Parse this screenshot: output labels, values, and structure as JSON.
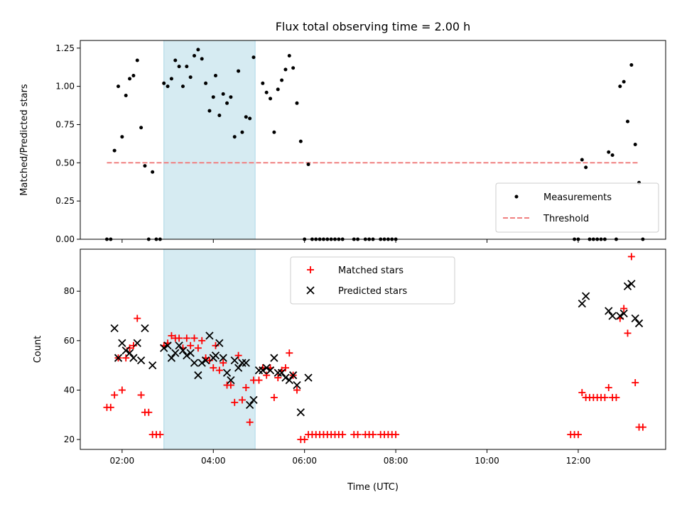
{
  "chart_data": [
    {
      "type": "scatter",
      "title": "Flux total observing time = 2.00 h",
      "xlabel": "",
      "ylabel": "Matched/Predicted stars",
      "xlim": [
        "01:05",
        "13:55"
      ],
      "ylim": [
        0,
        1.3
      ],
      "yticks": [
        "0.00",
        "0.25",
        "0.50",
        "0.75",
        "1.00",
        "1.25"
      ],
      "ytick_values": [
        0,
        0.25,
        0.5,
        0.75,
        1.0,
        1.25
      ],
      "shaded_interval": [
        "02:55",
        "04:55"
      ],
      "legend_position": "lower-right",
      "series": [
        {
          "name": "Measurements",
          "marker": "dot",
          "color": "#000000",
          "points": [
            [
              "01:40",
              0
            ],
            [
              "01:45",
              0
            ],
            [
              "01:50",
              0.58
            ],
            [
              "01:55",
              1.0
            ],
            [
              "02:00",
              0.67
            ],
            [
              "02:05",
              0.94
            ],
            [
              "02:10",
              1.05
            ],
            [
              "02:15",
              1.07
            ],
            [
              "02:20",
              1.17
            ],
            [
              "02:25",
              0.73
            ],
            [
              "02:30",
              0.48
            ],
            [
              "02:35",
              0
            ],
            [
              "02:40",
              0.44
            ],
            [
              "02:45",
              0
            ],
            [
              "02:50",
              0
            ],
            [
              "02:55",
              1.02
            ],
            [
              "03:00",
              1.0
            ],
            [
              "03:05",
              1.05
            ],
            [
              "03:10",
              1.17
            ],
            [
              "03:15",
              1.13
            ],
            [
              "03:20",
              1.0
            ],
            [
              "03:25",
              1.13
            ],
            [
              "03:30",
              1.06
            ],
            [
              "03:35",
              1.2
            ],
            [
              "03:40",
              1.24
            ],
            [
              "03:45",
              1.18
            ],
            [
              "03:50",
              1.02
            ],
            [
              "03:55",
              0.84
            ],
            [
              "04:00",
              0.93
            ],
            [
              "04:03",
              1.07
            ],
            [
              "04:08",
              0.81
            ],
            [
              "04:13",
              0.95
            ],
            [
              "04:18",
              0.89
            ],
            [
              "04:23",
              0.93
            ],
            [
              "04:28",
              0.67
            ],
            [
              "04:33",
              1.1
            ],
            [
              "04:38",
              0.7
            ],
            [
              "04:43",
              0.8
            ],
            [
              "04:48",
              0.79
            ],
            [
              "04:53",
              1.19
            ],
            [
              "05:05",
              1.02
            ],
            [
              "05:10",
              0.96
            ],
            [
              "05:15",
              0.92
            ],
            [
              "05:20",
              0.7
            ],
            [
              "05:25",
              0.98
            ],
            [
              "05:30",
              1.04
            ],
            [
              "05:35",
              1.11
            ],
            [
              "05:40",
              1.2
            ],
            [
              "05:45",
              1.12
            ],
            [
              "05:50",
              0.89
            ],
            [
              "05:55",
              0.64
            ],
            [
              "06:00",
              0
            ],
            [
              "06:05",
              0.49
            ],
            [
              "06:10",
              0
            ],
            [
              "06:15",
              0
            ],
            [
              "06:20",
              0
            ],
            [
              "06:25",
              0
            ],
            [
              "06:30",
              0
            ],
            [
              "06:35",
              0
            ],
            [
              "06:40",
              0
            ],
            [
              "06:45",
              0
            ],
            [
              "06:50",
              0
            ],
            [
              "07:05",
              0
            ],
            [
              "07:10",
              0
            ],
            [
              "07:20",
              0
            ],
            [
              "07:25",
              0
            ],
            [
              "07:30",
              0
            ],
            [
              "07:40",
              0
            ],
            [
              "07:45",
              0
            ],
            [
              "07:50",
              0
            ],
            [
              "07:55",
              0
            ],
            [
              "08:00",
              0
            ],
            [
              "11:55",
              0
            ],
            [
              "12:00",
              0
            ],
            [
              "12:05",
              0.52
            ],
            [
              "12:10",
              0.47
            ],
            [
              "12:15",
              0
            ],
            [
              "12:20",
              0
            ],
            [
              "12:25",
              0
            ],
            [
              "12:30",
              0
            ],
            [
              "12:35",
              0
            ],
            [
              "12:40",
              0.57
            ],
            [
              "12:45",
              0.55
            ],
            [
              "12:50",
              0
            ],
            [
              "12:55",
              1.0
            ],
            [
              "13:00",
              1.03
            ],
            [
              "13:05",
              0.77
            ],
            [
              "13:10",
              1.14
            ],
            [
              "13:15",
              0.62
            ],
            [
              "13:20",
              0.37
            ],
            [
              "13:25",
              0
            ]
          ]
        },
        {
          "name": "Threshold",
          "marker": "dashed-line",
          "color": "#f08080",
          "points": [
            [
              "01:40",
              0.5
            ],
            [
              "13:20",
              0.5
            ]
          ]
        }
      ]
    },
    {
      "type": "scatter",
      "title": "",
      "xlabel": "Time (UTC)",
      "ylabel": "Count",
      "xlim": [
        "01:05",
        "13:55"
      ],
      "ylim": [
        16,
        97
      ],
      "xticks": [
        "02:00",
        "04:00",
        "06:00",
        "08:00",
        "10:00",
        "12:00"
      ],
      "yticks": [
        "20",
        "40",
        "60",
        "80"
      ],
      "ytick_values": [
        20,
        40,
        60,
        80
      ],
      "shaded_interval": [
        "02:55",
        "04:55"
      ],
      "legend_position": "top-center",
      "series": [
        {
          "name": "Matched stars",
          "marker": "plus",
          "color": "#ff0000",
          "points": [
            [
              "01:40",
              33
            ],
            [
              "01:45",
              33
            ],
            [
              "01:50",
              38
            ],
            [
              "01:55",
              53
            ],
            [
              "02:00",
              40
            ],
            [
              "02:05",
              53
            ],
            [
              "02:10",
              57
            ],
            [
              "02:15",
              58
            ],
            [
              "02:20",
              69
            ],
            [
              "02:25",
              38
            ],
            [
              "02:30",
              31
            ],
            [
              "02:35",
              31
            ],
            [
              "02:40",
              22
            ],
            [
              "02:45",
              22
            ],
            [
              "02:50",
              22
            ],
            [
              "02:55",
              58
            ],
            [
              "03:00",
              59
            ],
            [
              "03:05",
              62
            ],
            [
              "03:10",
              61
            ],
            [
              "03:15",
              61
            ],
            [
              "03:20",
              57
            ],
            [
              "03:25",
              61
            ],
            [
              "03:30",
              58
            ],
            [
              "03:35",
              61
            ],
            [
              "03:40",
              57
            ],
            [
              "03:45",
              60
            ],
            [
              "03:50",
              53
            ],
            [
              "03:55",
              52
            ],
            [
              "04:00",
              49
            ],
            [
              "04:03",
              58
            ],
            [
              "04:08",
              48
            ],
            [
              "04:13",
              51
            ],
            [
              "04:18",
              42
            ],
            [
              "04:23",
              42
            ],
            [
              "04:28",
              35
            ],
            [
              "04:33",
              54
            ],
            [
              "04:38",
              36
            ],
            [
              "04:43",
              41
            ],
            [
              "04:48",
              27
            ],
            [
              "04:53",
              44
            ],
            [
              "05:00",
              44
            ],
            [
              "05:05",
              49
            ],
            [
              "05:10",
              46
            ],
            [
              "05:15",
              49
            ],
            [
              "05:20",
              37
            ],
            [
              "05:25",
              45
            ],
            [
              "05:30",
              48
            ],
            [
              "05:35",
              49
            ],
            [
              "05:40",
              55
            ],
            [
              "05:45",
              46
            ],
            [
              "05:50",
              40
            ],
            [
              "05:55",
              20
            ],
            [
              "06:00",
              20
            ],
            [
              "06:05",
              22
            ],
            [
              "06:10",
              22
            ],
            [
              "06:15",
              22
            ],
            [
              "06:20",
              22
            ],
            [
              "06:25",
              22
            ],
            [
              "06:30",
              22
            ],
            [
              "06:35",
              22
            ],
            [
              "06:40",
              22
            ],
            [
              "06:45",
              22
            ],
            [
              "06:50",
              22
            ],
            [
              "07:05",
              22
            ],
            [
              "07:10",
              22
            ],
            [
              "07:20",
              22
            ],
            [
              "07:25",
              22
            ],
            [
              "07:30",
              22
            ],
            [
              "07:40",
              22
            ],
            [
              "07:45",
              22
            ],
            [
              "07:50",
              22
            ],
            [
              "07:55",
              22
            ],
            [
              "08:00",
              22
            ],
            [
              "11:50",
              22
            ],
            [
              "11:55",
              22
            ],
            [
              "12:00",
              22
            ],
            [
              "12:05",
              39
            ],
            [
              "12:10",
              37
            ],
            [
              "12:15",
              37
            ],
            [
              "12:20",
              37
            ],
            [
              "12:25",
              37
            ],
            [
              "12:30",
              37
            ],
            [
              "12:35",
              37
            ],
            [
              "12:40",
              41
            ],
            [
              "12:45",
              37
            ],
            [
              "12:50",
              37
            ],
            [
              "12:55",
              69
            ],
            [
              "13:00",
              73
            ],
            [
              "13:05",
              63
            ],
            [
              "13:10",
              94
            ],
            [
              "13:15",
              43
            ],
            [
              "13:20",
              25
            ],
            [
              "13:25",
              25
            ]
          ]
        },
        {
          "name": "Predicted stars",
          "marker": "x",
          "color": "#000000",
          "points": [
            [
              "01:50",
              65
            ],
            [
              "01:55",
              53
            ],
            [
              "02:00",
              59
            ],
            [
              "02:05",
              56
            ],
            [
              "02:10",
              55
            ],
            [
              "02:15",
              53
            ],
            [
              "02:20",
              59
            ],
            [
              "02:25",
              52
            ],
            [
              "02:30",
              65
            ],
            [
              "02:40",
              50
            ],
            [
              "02:55",
              57
            ],
            [
              "03:00",
              58
            ],
            [
              "03:05",
              53
            ],
            [
              "03:10",
              55
            ],
            [
              "03:15",
              58
            ],
            [
              "03:20",
              56
            ],
            [
              "03:25",
              54
            ],
            [
              "03:30",
              55
            ],
            [
              "03:35",
              51
            ],
            [
              "03:40",
              46
            ],
            [
              "03:45",
              51
            ],
            [
              "03:50",
              52
            ],
            [
              "03:55",
              62
            ],
            [
              "04:00",
              53
            ],
            [
              "04:03",
              54
            ],
            [
              "04:08",
              59
            ],
            [
              "04:13",
              53
            ],
            [
              "04:18",
              47
            ],
            [
              "04:23",
              44
            ],
            [
              "04:28",
              52
            ],
            [
              "04:33",
              49
            ],
            [
              "04:38",
              51
            ],
            [
              "04:43",
              51
            ],
            [
              "04:48",
              34
            ],
            [
              "04:53",
              36
            ],
            [
              "05:00",
              48
            ],
            [
              "05:05",
              48
            ],
            [
              "05:10",
              49
            ],
            [
              "05:15",
              48
            ],
            [
              "05:20",
              53
            ],
            [
              "05:25",
              47
            ],
            [
              "05:30",
              47
            ],
            [
              "05:35",
              45
            ],
            [
              "05:40",
              44
            ],
            [
              "05:45",
              46
            ],
            [
              "05:50",
              42
            ],
            [
              "05:55",
              31
            ],
            [
              "06:05",
              45
            ],
            [
              "12:05",
              75
            ],
            [
              "12:10",
              78
            ],
            [
              "12:40",
              72
            ],
            [
              "12:45",
              70
            ],
            [
              "12:55",
              70
            ],
            [
              "13:00",
              71
            ],
            [
              "13:05",
              82
            ],
            [
              "13:10",
              83
            ],
            [
              "13:15",
              69
            ],
            [
              "13:20",
              67
            ]
          ]
        }
      ]
    }
  ]
}
